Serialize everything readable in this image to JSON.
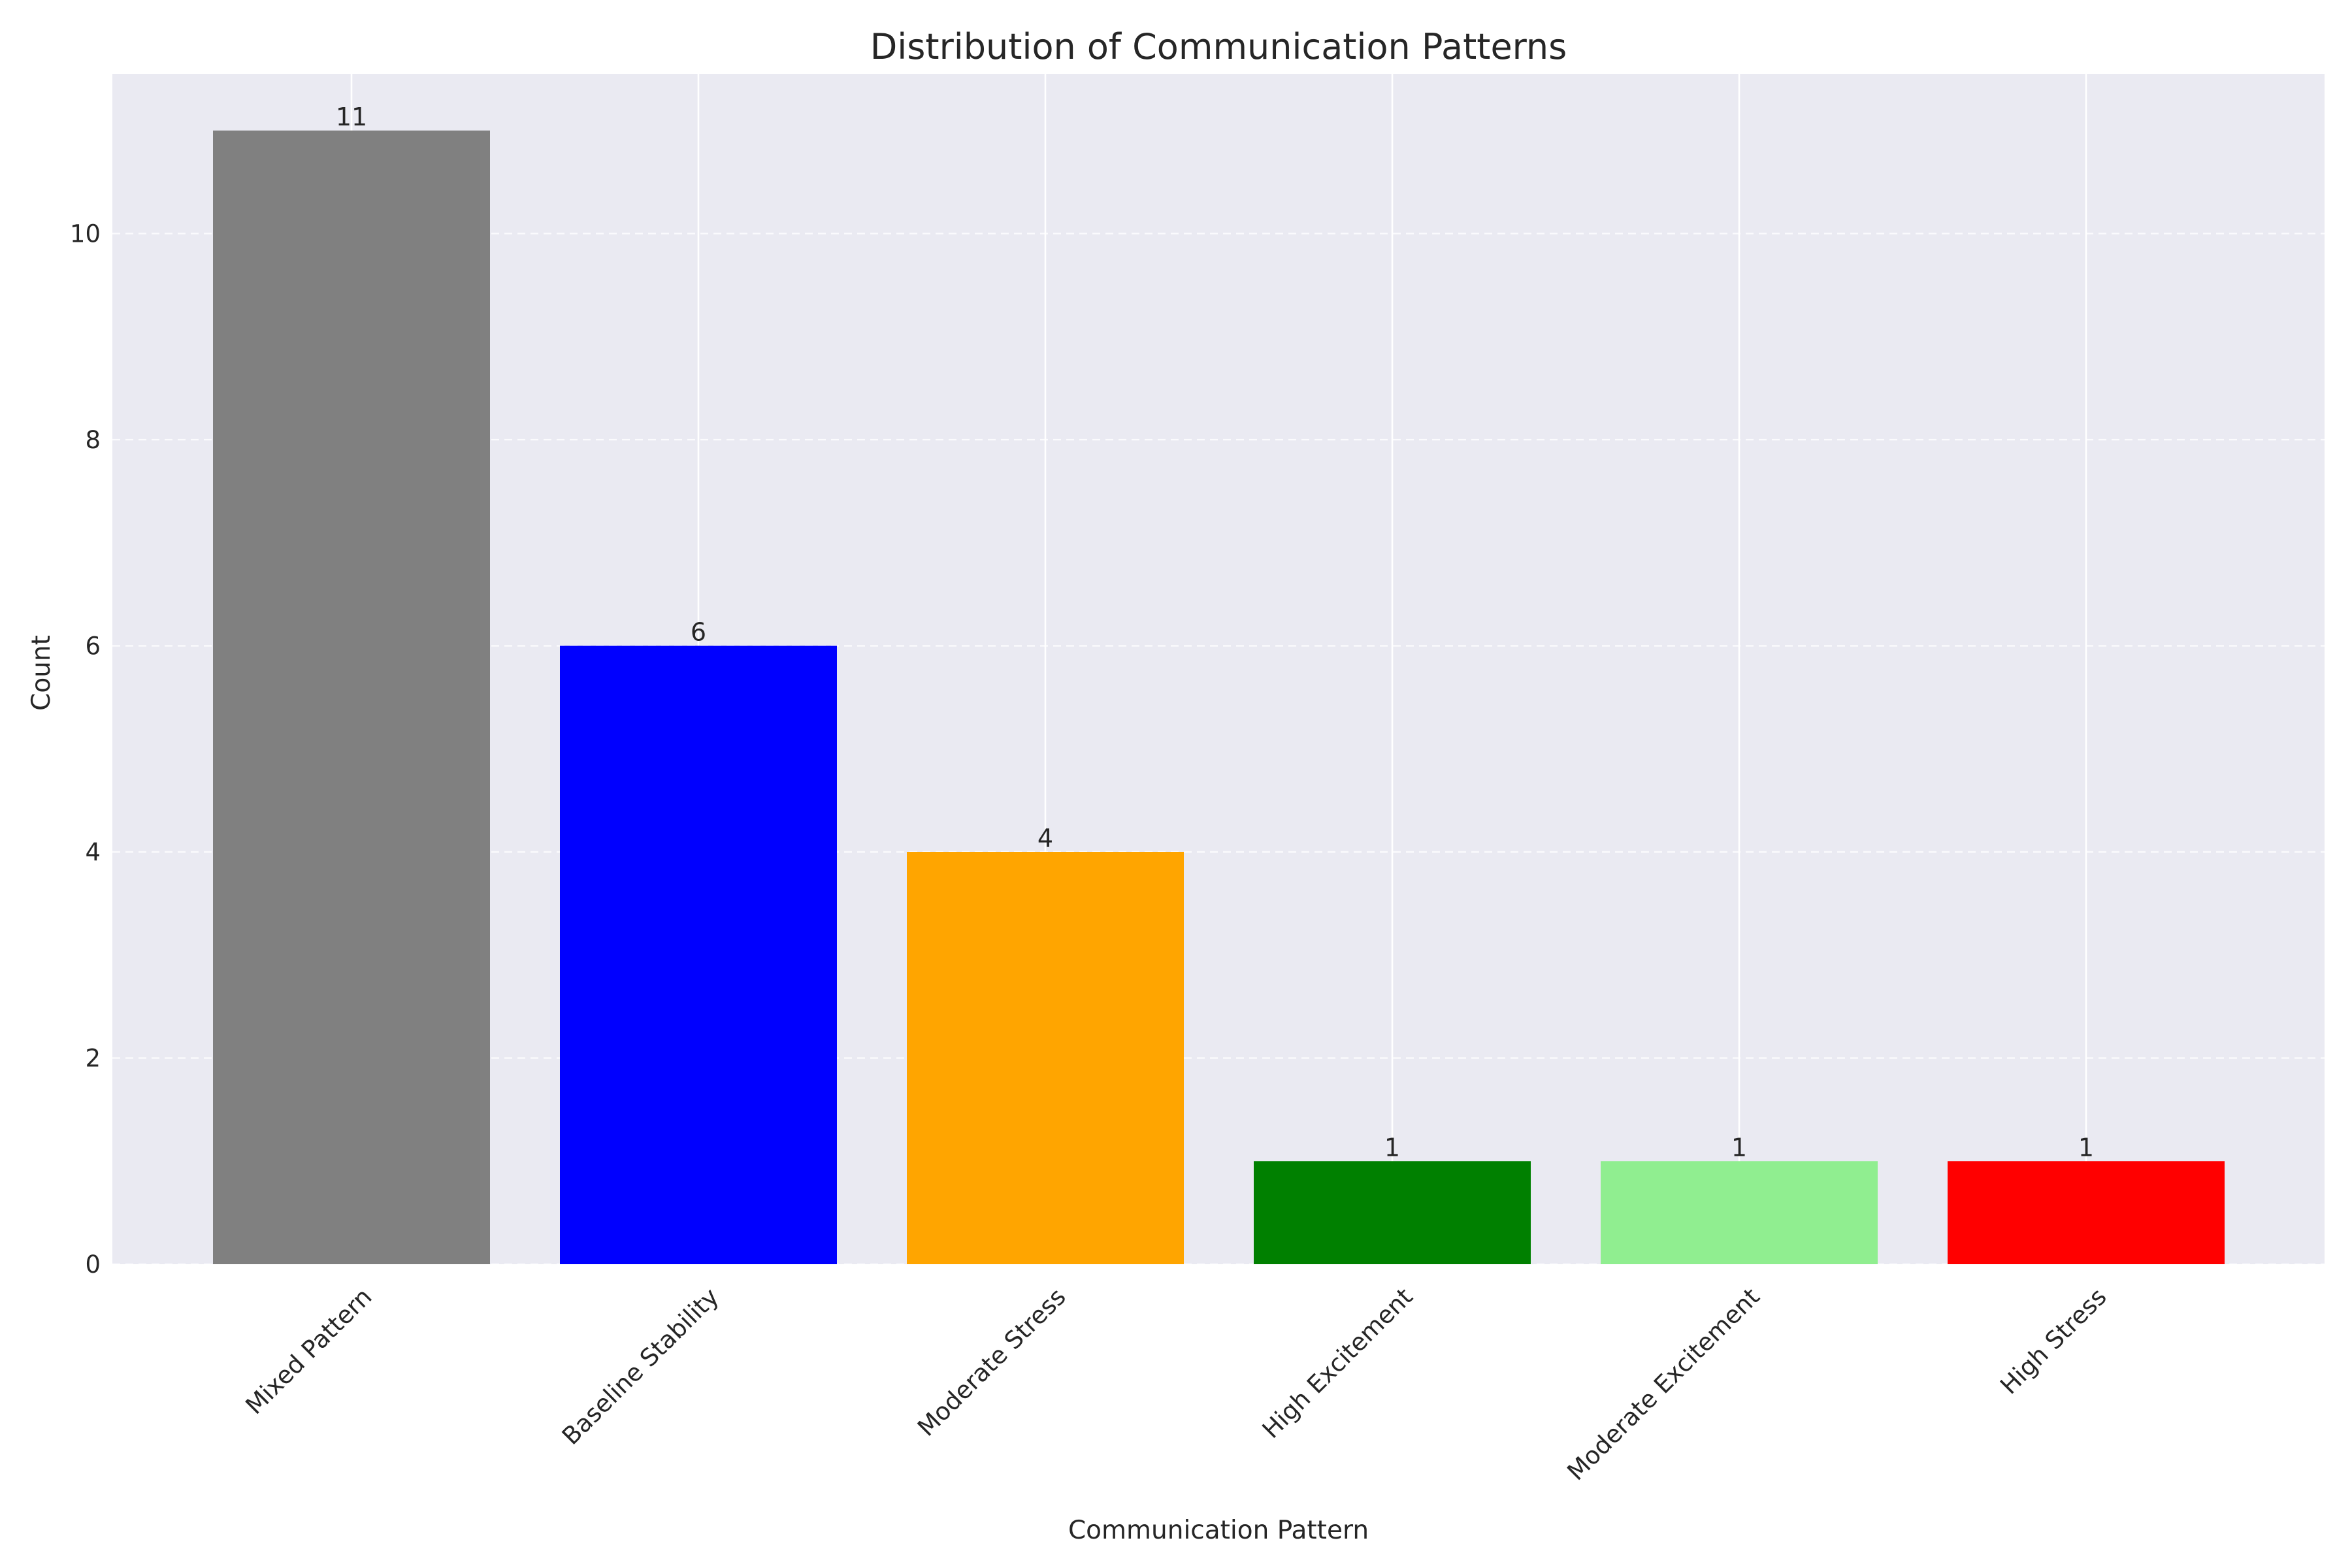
{
  "chart_data": {
    "type": "bar",
    "title": "Distribution of Communication Patterns",
    "xlabel": "Communication Pattern",
    "ylabel": "Count",
    "categories": [
      "Mixed Pattern",
      "Baseline Stability",
      "Moderate Stress",
      "High Excitement",
      "Moderate Excitement",
      "High Stress"
    ],
    "values": [
      11,
      6,
      4,
      1,
      1,
      1
    ],
    "data_labels": [
      "11",
      "6",
      "4",
      "1",
      "1",
      "1"
    ],
    "colors": [
      "#808080",
      "#0000FF",
      "#FFA500",
      "#008000",
      "#90EE90",
      "#FF0000"
    ],
    "ylim": [
      0,
      11.55
    ],
    "yticks": [
      0,
      2,
      4,
      6,
      8,
      10
    ],
    "grid": true,
    "legend": "none"
  }
}
